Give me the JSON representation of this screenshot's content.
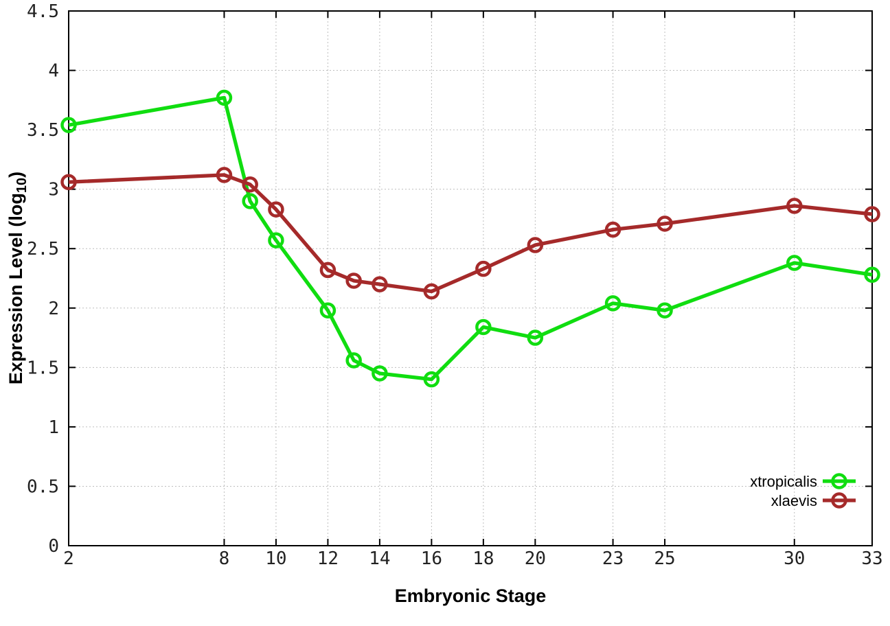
{
  "chart_data": {
    "type": "line",
    "title": "",
    "xlabel": "Embryonic Stage",
    "ylabel_main": "Expression Level (log",
    "ylabel_sub": "10",
    "ylabel_close": ")",
    "xlim": [
      2,
      33
    ],
    "ylim": [
      0,
      4.5
    ],
    "grid": true,
    "legend_position": "bottom-right",
    "marker": "open-circle",
    "x_ticks": [
      "2",
      "8",
      "10",
      "12",
      "14",
      "16",
      "18",
      "20",
      "23",
      "25",
      "30",
      "33"
    ],
    "y_ticks": [
      "0",
      "0.5",
      "1",
      "1.5",
      "2",
      "2.5",
      "3",
      "3.5",
      "4",
      "4.5"
    ],
    "x": [
      2,
      8,
      9,
      10,
      12,
      13,
      14,
      16,
      18,
      20,
      23,
      25,
      30,
      33
    ],
    "series": [
      {
        "name": "xtropicalis",
        "color": "#10dd10",
        "values": [
          3.54,
          3.77,
          2.9,
          2.57,
          1.98,
          1.56,
          1.45,
          1.4,
          1.84,
          1.75,
          2.04,
          1.98,
          2.38,
          2.28
        ]
      },
      {
        "name": "xlaevis",
        "color": "#a52a2a",
        "values": [
          3.06,
          3.12,
          3.04,
          2.83,
          2.32,
          2.23,
          2.2,
          2.14,
          2.33,
          2.53,
          2.66,
          2.71,
          2.86,
          2.79
        ]
      }
    ]
  }
}
